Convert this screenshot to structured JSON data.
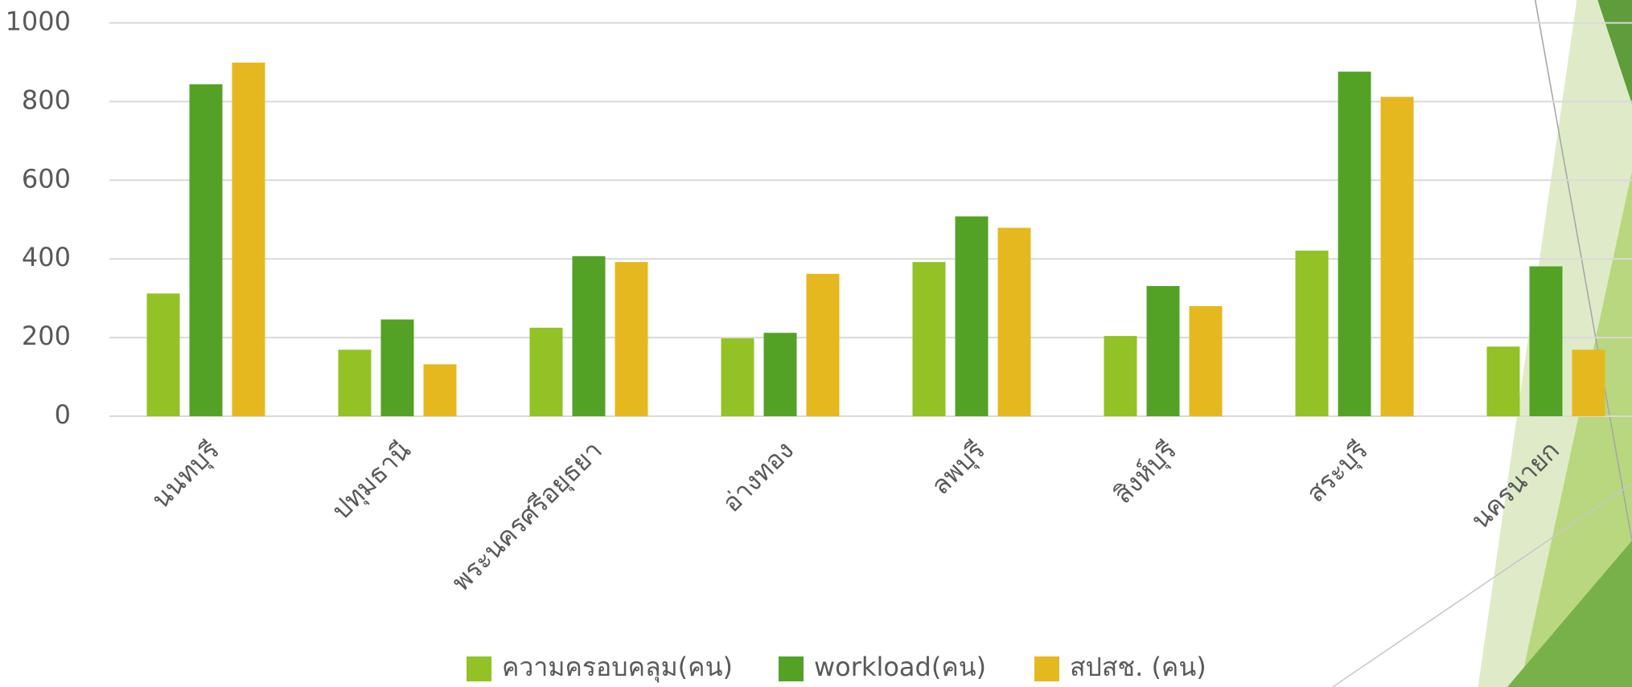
{
  "chart_data": {
    "type": "bar",
    "categories": [
      "นนทบุรี",
      "ปทุมธานี",
      "พระนครศรีอยุธยา",
      "อ่างทอง",
      "ลพบุรี",
      "สิงห์บุรี",
      "สระบุรี",
      "นครนายก"
    ],
    "series": [
      {
        "name": "ความครอบคลุม(คน)",
        "color": "#92c225",
        "values": [
          312,
          169,
          225,
          198,
          392,
          204,
          421,
          177
        ]
      },
      {
        "name": "workload(คน)",
        "color": "#53a226",
        "values": [
          844,
          246,
          407,
          212,
          508,
          331,
          876,
          381
        ]
      },
      {
        "name": "สปสช. (คน)",
        "color": "#e6b820",
        "values": [
          899,
          132,
          392,
          362,
          479,
          280,
          812,
          169
        ]
      }
    ],
    "ylim": [
      0,
      1000
    ],
    "yticks": [
      0,
      200,
      400,
      600,
      800,
      1000
    ],
    "grid": true,
    "legend": "bottom"
  }
}
